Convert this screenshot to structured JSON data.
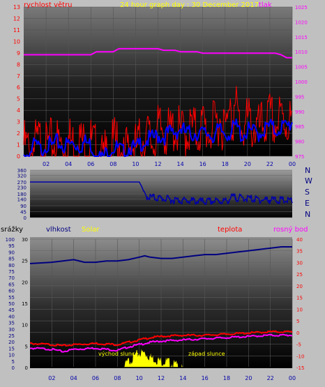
{
  "colors": {
    "wind": "#ff0000",
    "gust": "#ff0000",
    "wind_avg": "#0000ff",
    "pressure": "#ff00ff",
    "direction": "#0000aa",
    "humidity": "#000080",
    "rain": "#000000",
    "solar": "#ffff00",
    "temp": "#ff0000",
    "dew": "#ff00ff"
  },
  "header": {
    "left_label": "rychlost větru",
    "title": "24 hour graph day : 30 December 2017",
    "right_label": "tlak"
  },
  "panel2": {
    "compass": [
      "N",
      "W",
      "S",
      "E",
      "N"
    ]
  },
  "panel3": {
    "label_rain": "srážky",
    "label_humidity": "vlhkost",
    "label_solar": "Solar",
    "label_temp": "teplota",
    "label_dew": "rosný bod",
    "sunrise": "východ slunce",
    "sunset": "západ slunce"
  },
  "chart_data": [
    {
      "type": "line",
      "title": "24 hour graph day : 30 December 2017",
      "x_ticks": [
        "02",
        "04",
        "06",
        "08",
        "10",
        "12",
        "14",
        "16",
        "18",
        "20",
        "22",
        "00"
      ],
      "y_left_ticks": [
        "0",
        "1",
        "2",
        "3",
        "4",
        "5",
        "6",
        "7",
        "8",
        "9",
        "10",
        "11",
        "12",
        "13"
      ],
      "y_right_ticks": [
        "975",
        "980",
        "985",
        "990",
        "995",
        "1000",
        "1005",
        "1010",
        "1015",
        "1020",
        "1025"
      ],
      "ylim_left": [
        0,
        13
      ],
      "ylim_right": [
        975,
        1025
      ],
      "series": [
        {
          "name": "rychlost větru",
          "axis": "left",
          "style": "gust",
          "x": [
            0,
            0.5,
            1,
            1.5,
            2,
            2.5,
            3,
            3.5,
            4,
            4.5,
            5,
            5.5,
            6,
            6.5,
            7,
            7.5,
            8,
            8.5,
            9,
            9.5,
            10,
            10.5,
            11,
            11.5,
            12,
            12.5,
            13,
            13.5,
            14,
            14.5,
            15,
            15.5,
            16,
            16.5,
            17,
            17.5,
            18,
            18.5,
            19,
            19.5,
            20,
            20.5,
            21,
            21.5,
            22,
            22.5,
            23,
            23.5,
            24
          ],
          "values": [
            2.2,
            1.6,
            2.1,
            2.5,
            1.8,
            2.3,
            2.4,
            2.0,
            2.6,
            2.2,
            2.5,
            2.1,
            2.4,
            1.6,
            0.9,
            1.5,
            2.1,
            2.6,
            1.3,
            2.4,
            1.8,
            2.6,
            3.0,
            2.4,
            3.3,
            3.6,
            3.0,
            3.8,
            3.1,
            3.3,
            3.6,
            3.2,
            3.9,
            3.4,
            3.7,
            4.6,
            3.5,
            4.2,
            5.2,
            3.6,
            4.2,
            3.8,
            3.4,
            4.0,
            4.5,
            3.9,
            4.5,
            4.2,
            4.2
          ]
        },
        {
          "name": "",
          "axis": "left",
          "style": "avg",
          "x": [
            0,
            0.5,
            1,
            1.5,
            2,
            2.5,
            3,
            3.5,
            4,
            4.5,
            5,
            5.5,
            6,
            6.5,
            7,
            7.5,
            8,
            8.5,
            9,
            9.5,
            10,
            10.5,
            11,
            11.5,
            12,
            12.5,
            13,
            13.5,
            14,
            14.5,
            15,
            15.5,
            16,
            16.5,
            17,
            17.5,
            18,
            18.5,
            19,
            19.5,
            20,
            20.5,
            21,
            21.5,
            22,
            22.5,
            23,
            23.5,
            24
          ],
          "values": [
            0.4,
            0.6,
            1.4,
            0.9,
            1.5,
            1.2,
            1.6,
            1.3,
            1.4,
            1.5,
            1.3,
            1.6,
            1.4,
            0.5,
            0.2,
            0.8,
            1.2,
            1.0,
            0.6,
            1.3,
            0.9,
            1.6,
            1.8,
            1.9,
            2.2,
            2.1,
            2.4,
            2.5,
            2.8,
            2.4,
            2.3,
            2.5,
            2.3,
            2.4,
            2.2,
            2.6,
            2.4,
            2.5,
            3.0,
            2.2,
            2.6,
            2.5,
            2.4,
            2.7,
            3.0,
            2.6,
            3.0,
            2.9,
            3.4
          ]
        },
        {
          "name": "tlak",
          "axis": "right",
          "x": [
            0,
            6,
            6.5,
            8,
            8.5,
            12,
            12.5,
            13.5,
            14,
            15.5,
            16,
            22.5,
            23,
            23.5,
            24
          ],
          "values": [
            1009,
            1009,
            1010,
            1010,
            1011,
            1011,
            1010.5,
            1010.5,
            1010,
            1010,
            1009.5,
            1009.5,
            1009,
            1008,
            1008
          ]
        }
      ]
    },
    {
      "type": "line",
      "y_ticks": [
        "0",
        "45",
        "90",
        "140",
        "180",
        "230",
        "270",
        "320",
        "360"
      ],
      "ylim": [
        0,
        360
      ],
      "series": [
        {
          "name": "",
          "x": [
            0,
            10,
            10.2,
            10.5,
            11,
            12,
            13,
            14,
            15,
            16,
            17,
            18,
            18.5,
            19,
            20,
            21,
            22,
            23,
            24
          ],
          "values": [
            270,
            270,
            240,
            180,
            170,
            160,
            150,
            145,
            140,
            135,
            140,
            140,
            170,
            165,
            160,
            150,
            150,
            145,
            140
          ]
        }
      ]
    },
    {
      "type": "line",
      "x_ticks": [
        "02",
        "04",
        "06",
        "08",
        "10",
        "12",
        "14",
        "16",
        "18",
        "20",
        "22",
        "00"
      ],
      "y_rain_ticks": [
        "0",
        "5",
        "10",
        "15",
        "20",
        "25",
        "30",
        "35",
        "40",
        "45",
        "50",
        "55",
        "60",
        "65",
        "70",
        "75",
        "80",
        "85",
        "90",
        "95",
        "100"
      ],
      "y_solar_ticks": [
        "0",
        "5",
        "10",
        "15",
        "20",
        "25",
        "30"
      ],
      "y_temp_ticks": [
        "-15",
        "-10",
        "-5",
        "0",
        "5",
        "10",
        "15",
        "20",
        "25",
        "30",
        "35",
        "40"
      ],
      "ylim_rain": [
        0,
        100
      ],
      "ylim_solar": [
        0,
        30
      ],
      "ylim_temp": [
        -15,
        40
      ],
      "series": [
        {
          "name": "vlhkost",
          "axis": "rain",
          "x": [
            0,
            2,
            3,
            4,
            5,
            6,
            7,
            8,
            9,
            10,
            10.5,
            11,
            12,
            13,
            14,
            15,
            16,
            17,
            18,
            19,
            20,
            21,
            22,
            23,
            24
          ],
          "values": [
            81,
            82,
            83,
            84,
            82,
            82,
            83,
            83,
            84,
            86,
            87,
            86,
            85,
            85,
            86,
            87,
            88,
            88,
            89,
            90,
            91,
            92,
            93,
            94,
            94
          ]
        },
        {
          "name": "Solar",
          "axis": "solar",
          "x": [
            8.5,
            9,
            9.5,
            10,
            10.5,
            11,
            11.5,
            12,
            12.5,
            13,
            13.5,
            14
          ],
          "values": [
            0.5,
            2,
            3,
            4,
            4,
            3,
            2.5,
            2,
            2,
            1.5,
            1,
            0
          ]
        },
        {
          "name": "teplota",
          "axis": "temp",
          "x": [
            0,
            2,
            3,
            4,
            6,
            8,
            9,
            10,
            11,
            12,
            14,
            16,
            18,
            20,
            22,
            24
          ],
          "values": [
            -4.5,
            -5,
            -5.5,
            -5,
            -4.5,
            -5,
            -4,
            -3,
            -2,
            -1.5,
            -1,
            -1,
            -0.5,
            0,
            0.5,
            0.5
          ]
        },
        {
          "name": "rosný bod",
          "axis": "temp",
          "x": [
            0,
            2,
            3,
            4,
            6,
            8,
            9,
            10,
            11,
            12,
            14,
            16,
            18,
            20,
            22,
            24
          ],
          "values": [
            -6.5,
            -7,
            -8,
            -7,
            -6.5,
            -7.5,
            -6,
            -5,
            -4,
            -3.5,
            -3,
            -2.5,
            -2,
            -1.5,
            -1,
            -1
          ]
        },
        {
          "name": "srážky",
          "axis": "rain",
          "x": [
            0,
            24
          ],
          "values": [
            0,
            0
          ]
        }
      ]
    }
  ]
}
